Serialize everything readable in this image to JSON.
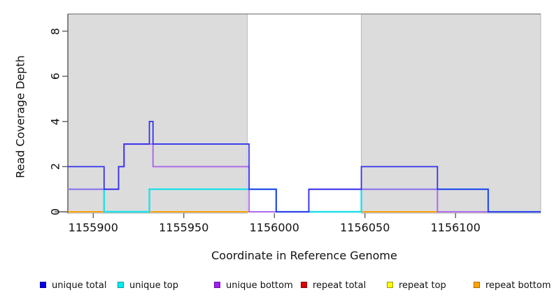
{
  "chart_data": {
    "type": "step-line",
    "title": "",
    "xlabel": "Coordinate in Reference Genome",
    "ylabel": "Read Coverage Depth",
    "x_domain": [
      1155886,
      1156147
    ],
    "y_domain": [
      0,
      8.76
    ],
    "x_ticks": [
      1155900,
      1155950,
      1156000,
      1156050,
      1156100
    ],
    "y_ticks": [
      0,
      2,
      4,
      6,
      8
    ],
    "grid": false,
    "shaded_regions": [
      {
        "x_start": 1155886,
        "x_end": 1155985,
        "fill": "#dcdcdc",
        "stroke": "#ababab"
      },
      {
        "x_start": 1156048,
        "x_end": 1156147,
        "fill": "#dcdcdc",
        "stroke": "#ababab"
      }
    ],
    "plot_border_top_color": "#808080",
    "axis_color": "#3c3c3c",
    "series": [
      {
        "name": "repeat top",
        "color": "#f0f000",
        "width": 1.4,
        "steps": [
          [
            1155886,
            0
          ]
        ]
      },
      {
        "name": "repeat total",
        "color": "#dd2222",
        "width": 1.4,
        "steps": [
          [
            1155886,
            0
          ]
        ]
      },
      {
        "name": "repeat bottom",
        "color": "#ffa500",
        "width": 1.8,
        "steps": [
          [
            1155886,
            0
          ]
        ]
      },
      {
        "name": "unique top",
        "color": "#22dfe8",
        "width": 2.4,
        "steps": [
          [
            1155886,
            1
          ],
          [
            1155906,
            0
          ],
          [
            1155931,
            1
          ],
          [
            1156001,
            0
          ],
          [
            1156048,
            1
          ],
          [
            1156118,
            0
          ]
        ]
      },
      {
        "name": "unique bottom",
        "color": "#ae6bea",
        "width": 2.0,
        "steps": [
          [
            1155886,
            1
          ],
          [
            1155914,
            2
          ],
          [
            1155917,
            3
          ],
          [
            1155933,
            2
          ],
          [
            1155986,
            0
          ],
          [
            1156019,
            1
          ],
          [
            1156090,
            0
          ]
        ]
      },
      {
        "name": "unique total",
        "color": "#3333ee",
        "width": 1.8,
        "steps": [
          [
            1155886,
            2
          ],
          [
            1155906,
            1
          ],
          [
            1155914,
            2
          ],
          [
            1155917,
            3
          ],
          [
            1155931,
            4
          ],
          [
            1155933,
            3
          ],
          [
            1155986,
            1
          ],
          [
            1156001,
            0
          ],
          [
            1156019,
            1
          ],
          [
            1156048,
            2
          ],
          [
            1156090,
            1
          ],
          [
            1156118,
            0
          ]
        ]
      }
    ]
  },
  "legend": {
    "items": [
      {
        "label": "unique total",
        "color": "#0000ee",
        "border": "#00009a"
      },
      {
        "label": "unique top",
        "color": "#00eeee",
        "border": "#009a9e"
      },
      {
        "label": "unique bottom",
        "color": "#a020f0",
        "border": "#6a0dad"
      },
      {
        "label": "repeat total",
        "color": "#dd0000",
        "border": "#8b0000"
      },
      {
        "label": "repeat top",
        "color": "#ffff00",
        "border": "#9a9a00"
      },
      {
        "label": "repeat bottom",
        "color": "#ffa500",
        "border": "#a86a00"
      }
    ]
  }
}
